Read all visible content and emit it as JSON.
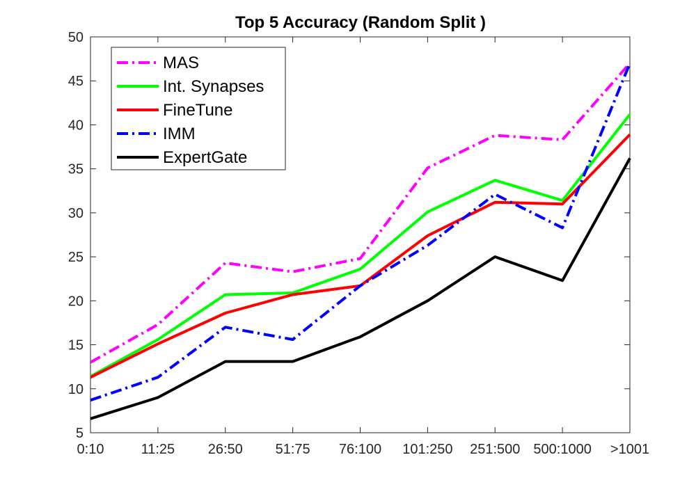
{
  "chart_data": {
    "type": "line",
    "title": "Top 5 Accuracy (Random Split )",
    "xlabel": "",
    "ylabel": "",
    "categories": [
      "0:10",
      "11:25",
      "26:50",
      "51:75",
      "76:100",
      "101:250",
      "251:500",
      "500:1000",
      ">1001"
    ],
    "ylim": [
      5,
      50
    ],
    "yticks": [
      5,
      10,
      15,
      20,
      25,
      30,
      35,
      40,
      45,
      50
    ],
    "grid": false,
    "legend_position": "top-left",
    "series": [
      {
        "name": "MAS",
        "color": "#ff00ff",
        "dash": "dashdot",
        "values": [
          13.0,
          17.3,
          24.3,
          23.3,
          24.8,
          35.1,
          38.8,
          38.3,
          47.0
        ]
      },
      {
        "name": "Int. Synapses",
        "color": "#00ff00",
        "dash": "solid",
        "values": [
          11.4,
          15.6,
          20.7,
          20.9,
          23.6,
          30.1,
          33.7,
          31.4,
          41.2
        ]
      },
      {
        "name": "FineTune",
        "color": "#ff0000",
        "dash": "solid",
        "values": [
          11.3,
          15.1,
          18.6,
          20.7,
          21.7,
          27.4,
          31.2,
          31.0,
          38.9
        ]
      },
      {
        "name": "IMM",
        "color": "#0000ff",
        "dash": "dashdot",
        "values": [
          8.7,
          11.3,
          17.0,
          15.6,
          21.7,
          26.3,
          32.1,
          28.3,
          47.0
        ]
      },
      {
        "name": "ExpertGate",
        "color": "#000000",
        "dash": "solid",
        "values": [
          6.6,
          9.0,
          13.1,
          13.1,
          15.9,
          20.0,
          25.0,
          22.3,
          36.2
        ]
      }
    ]
  }
}
